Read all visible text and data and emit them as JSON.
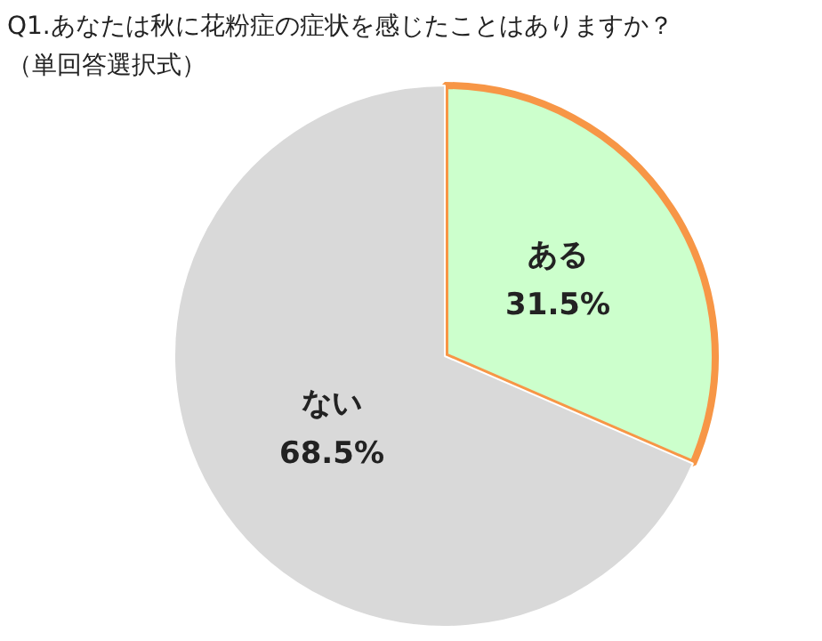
{
  "chart_data": {
    "type": "pie",
    "title": "Q1.あなたは秋に花粉症の症状を感じたことはありますか？",
    "subtitle": "（単回答選択式）",
    "categories": [
      "ある",
      "ない"
    ],
    "values": [
      31.5,
      68.5
    ],
    "colors": [
      "#ccffcc",
      "#d9d9d9"
    ],
    "value_labels": [
      "31.5%",
      "68.5%"
    ],
    "legend": false
  }
}
